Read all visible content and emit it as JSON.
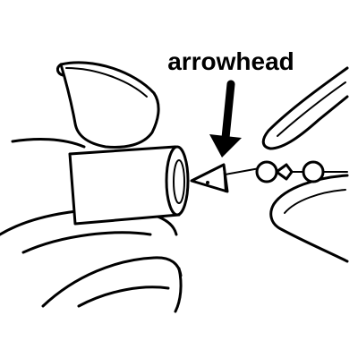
{
  "labels": {
    "callout": "arrowhead"
  },
  "colors": {
    "ink": "#000000",
    "paper": "#ffffff"
  }
}
